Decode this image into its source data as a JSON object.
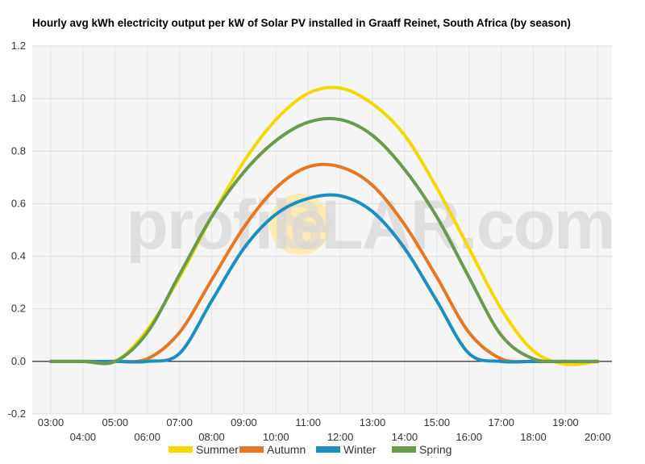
{
  "chart_data": {
    "type": "line",
    "title": "Hourly avg kWh electricity output per kW of Solar PV installed in Graaff Reinet, South Africa (by season)",
    "watermark": {
      "left": "profile",
      "sun_letter": "S",
      "right": "LAR.com",
      "sun_color": "#fde9a8",
      "text_color": "#d8d8d8"
    },
    "xlabel": "",
    "ylabel": "",
    "x": [
      "03:00",
      "04:00",
      "05:00",
      "06:00",
      "07:00",
      "08:00",
      "09:00",
      "10:00",
      "11:00",
      "12:00",
      "13:00",
      "14:00",
      "15:00",
      "16:00",
      "17:00",
      "18:00",
      "19:00",
      "20:00"
    ],
    "ylim": [
      -0.2,
      1.2
    ],
    "yticks": [
      "-0.2",
      "0.0",
      "0.2",
      "0.4",
      "0.6",
      "0.8",
      "1.0",
      "1.2"
    ],
    "grid": true,
    "legend_position": "bottom",
    "series": [
      {
        "name": "Summer",
        "color": "#f5d800",
        "values": [
          0.0,
          0.0,
          0.0,
          0.12,
          0.32,
          0.55,
          0.76,
          0.92,
          1.02,
          1.04,
          0.98,
          0.86,
          0.66,
          0.43,
          0.2,
          0.04,
          -0.01,
          0.0
        ]
      },
      {
        "name": "Autumn",
        "color": "#e87722",
        "values": [
          0.0,
          0.0,
          0.0,
          0.01,
          0.11,
          0.31,
          0.51,
          0.66,
          0.74,
          0.74,
          0.67,
          0.52,
          0.32,
          0.11,
          0.01,
          0.0,
          0.0,
          0.0
        ]
      },
      {
        "name": "Winter",
        "color": "#1a8fc0",
        "values": [
          0.0,
          0.0,
          0.0,
          0.0,
          0.03,
          0.23,
          0.43,
          0.56,
          0.62,
          0.63,
          0.57,
          0.43,
          0.23,
          0.03,
          0.0,
          0.0,
          0.0,
          0.0
        ]
      },
      {
        "name": "Spring",
        "color": "#6a9a4e",
        "values": [
          0.0,
          0.0,
          0.0,
          0.11,
          0.33,
          0.55,
          0.72,
          0.84,
          0.91,
          0.92,
          0.86,
          0.73,
          0.55,
          0.32,
          0.1,
          0.01,
          0.0,
          0.0
        ]
      }
    ]
  }
}
